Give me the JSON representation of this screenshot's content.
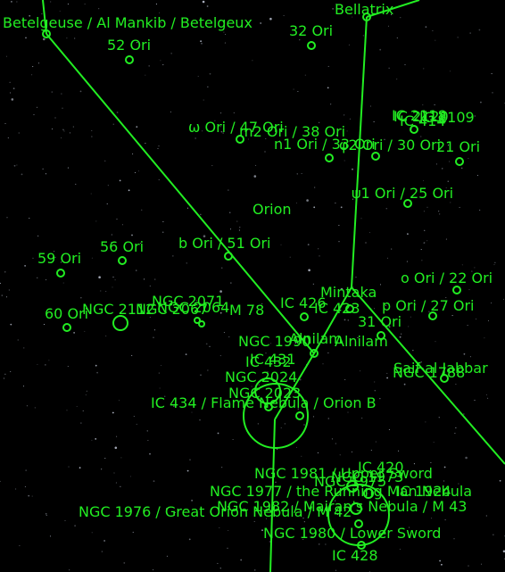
{
  "theme": {
    "sky": "#000000",
    "overlay": "#22ee22",
    "star": "#cfd6e6"
  },
  "labels": {
    "betelgeuse": "Betelgeuse / Al Mankib / Betelgeux",
    "bellatrix": "Bellatrix",
    "ori32": "32 Ori",
    "ori52": "52 Ori",
    "ic_cluster": "IC 2109",
    "ic_cluster2": "IC 2118",
    "ic_cluster3": "IC 2120",
    "ic_cluster4": "IC 414",
    "omega47": "ω Ori / 47 Ori",
    "m2_38": "m2 Ori / 38 Ori",
    "n1_33": "n1 Ori / 33 Ori",
    "phi2": "φ2 Ori / 30 Ori",
    "ori21": "21 Ori",
    "psi1_25": "ψ1 Ori / 25 Ori",
    "orion": "Orion",
    "ori56": "56 Ori",
    "b51": "b Ori / 51 Ori",
    "ori59": "59 Ori",
    "o22": "o Ori / 22 Ori",
    "ngc2071": "NGC 2071",
    "ngc2112": "NGC 2112",
    "ngc2064": "NGC 2064",
    "ngc2067": "NGC 2067",
    "m78": "M 78",
    "ori60": "60 Ori",
    "mintaka": "Mintaka",
    "ic426": "IC 426",
    "ic423": "IC 423",
    "p27": "p Ori / 27 Ori",
    "ori31": "31 Ori",
    "ngc1990": "NGC 1990",
    "alnilam": "Alnilam",
    "alnilam2": "Alnilam",
    "ic431": "IC 431",
    "ic432": "IC 432",
    "ngc2024": "NGC 2024",
    "ngc2023": "NGC 2023",
    "saiph": "Saif al Jabbar",
    "ngc1788": "NGC 1788",
    "ic434": "IC 434 / Flame Nebula / Orion B",
    "ngc1981": "NGC 1981 / Upper Sword",
    "ic420": "IC 420",
    "ngc1975": "NGC 1975",
    "ngc1973": "NGC 1973",
    "ngc1977": "NGC 1977 / the Running Man Nebula",
    "ic1924": "IC 1924",
    "ngc1982": "NGC 1982 / Mairan's Nebula / M 43",
    "ngc1976": "NGC 1976 / Great Orion Nebula / M 42",
    "ngc1980": "NGC 1980 / Lower Sword",
    "ic428": "IC 428"
  }
}
